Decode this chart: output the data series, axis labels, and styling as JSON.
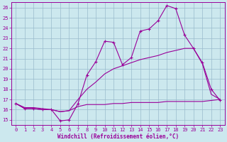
{
  "xlabel": "Windchill (Refroidissement éolien,°C)",
  "bg_color": "#cce8ee",
  "line_color": "#990099",
  "grid_color": "#99bbcc",
  "xlim": [
    -0.5,
    23.5
  ],
  "ylim": [
    14.5,
    26.5
  ],
  "xticks": [
    0,
    1,
    2,
    3,
    4,
    5,
    6,
    7,
    8,
    9,
    10,
    11,
    12,
    13,
    14,
    15,
    16,
    17,
    18,
    19,
    20,
    21,
    22,
    23
  ],
  "yticks": [
    15,
    16,
    17,
    18,
    19,
    20,
    21,
    22,
    23,
    24,
    25,
    26
  ],
  "line1_x": [
    0,
    1,
    2,
    3,
    4,
    5,
    6,
    7,
    8,
    9,
    10,
    11,
    12,
    13,
    14,
    15,
    16,
    17,
    18,
    19,
    20,
    21,
    22,
    23
  ],
  "line1_y": [
    16.6,
    16.1,
    16.1,
    16.0,
    16.0,
    14.9,
    15.0,
    16.6,
    19.4,
    20.7,
    22.7,
    22.6,
    20.4,
    21.1,
    23.7,
    23.9,
    24.7,
    26.2,
    25.9,
    23.3,
    22.0,
    20.6,
    18.0,
    16.9
  ],
  "line2_x": [
    0,
    1,
    2,
    3,
    4,
    5,
    6,
    7,
    8,
    9,
    10,
    11,
    12,
    13,
    14,
    15,
    16,
    17,
    18,
    19,
    20,
    21,
    22,
    23
  ],
  "line2_y": [
    16.6,
    16.2,
    16.2,
    16.1,
    16.0,
    15.8,
    15.9,
    17.0,
    18.0,
    18.7,
    19.5,
    20.0,
    20.3,
    20.6,
    20.9,
    21.1,
    21.3,
    21.6,
    21.8,
    22.0,
    22.0,
    20.5,
    17.5,
    17.0
  ],
  "line3_x": [
    0,
    1,
    2,
    3,
    4,
    5,
    6,
    7,
    8,
    9,
    10,
    11,
    12,
    13,
    14,
    15,
    16,
    17,
    18,
    19,
    20,
    21,
    22,
    23
  ],
  "line3_y": [
    16.6,
    16.1,
    16.1,
    16.0,
    16.0,
    15.8,
    15.9,
    16.3,
    16.5,
    16.5,
    16.5,
    16.6,
    16.6,
    16.7,
    16.7,
    16.7,
    16.7,
    16.8,
    16.8,
    16.8,
    16.8,
    16.8,
    16.9,
    17.0
  ]
}
